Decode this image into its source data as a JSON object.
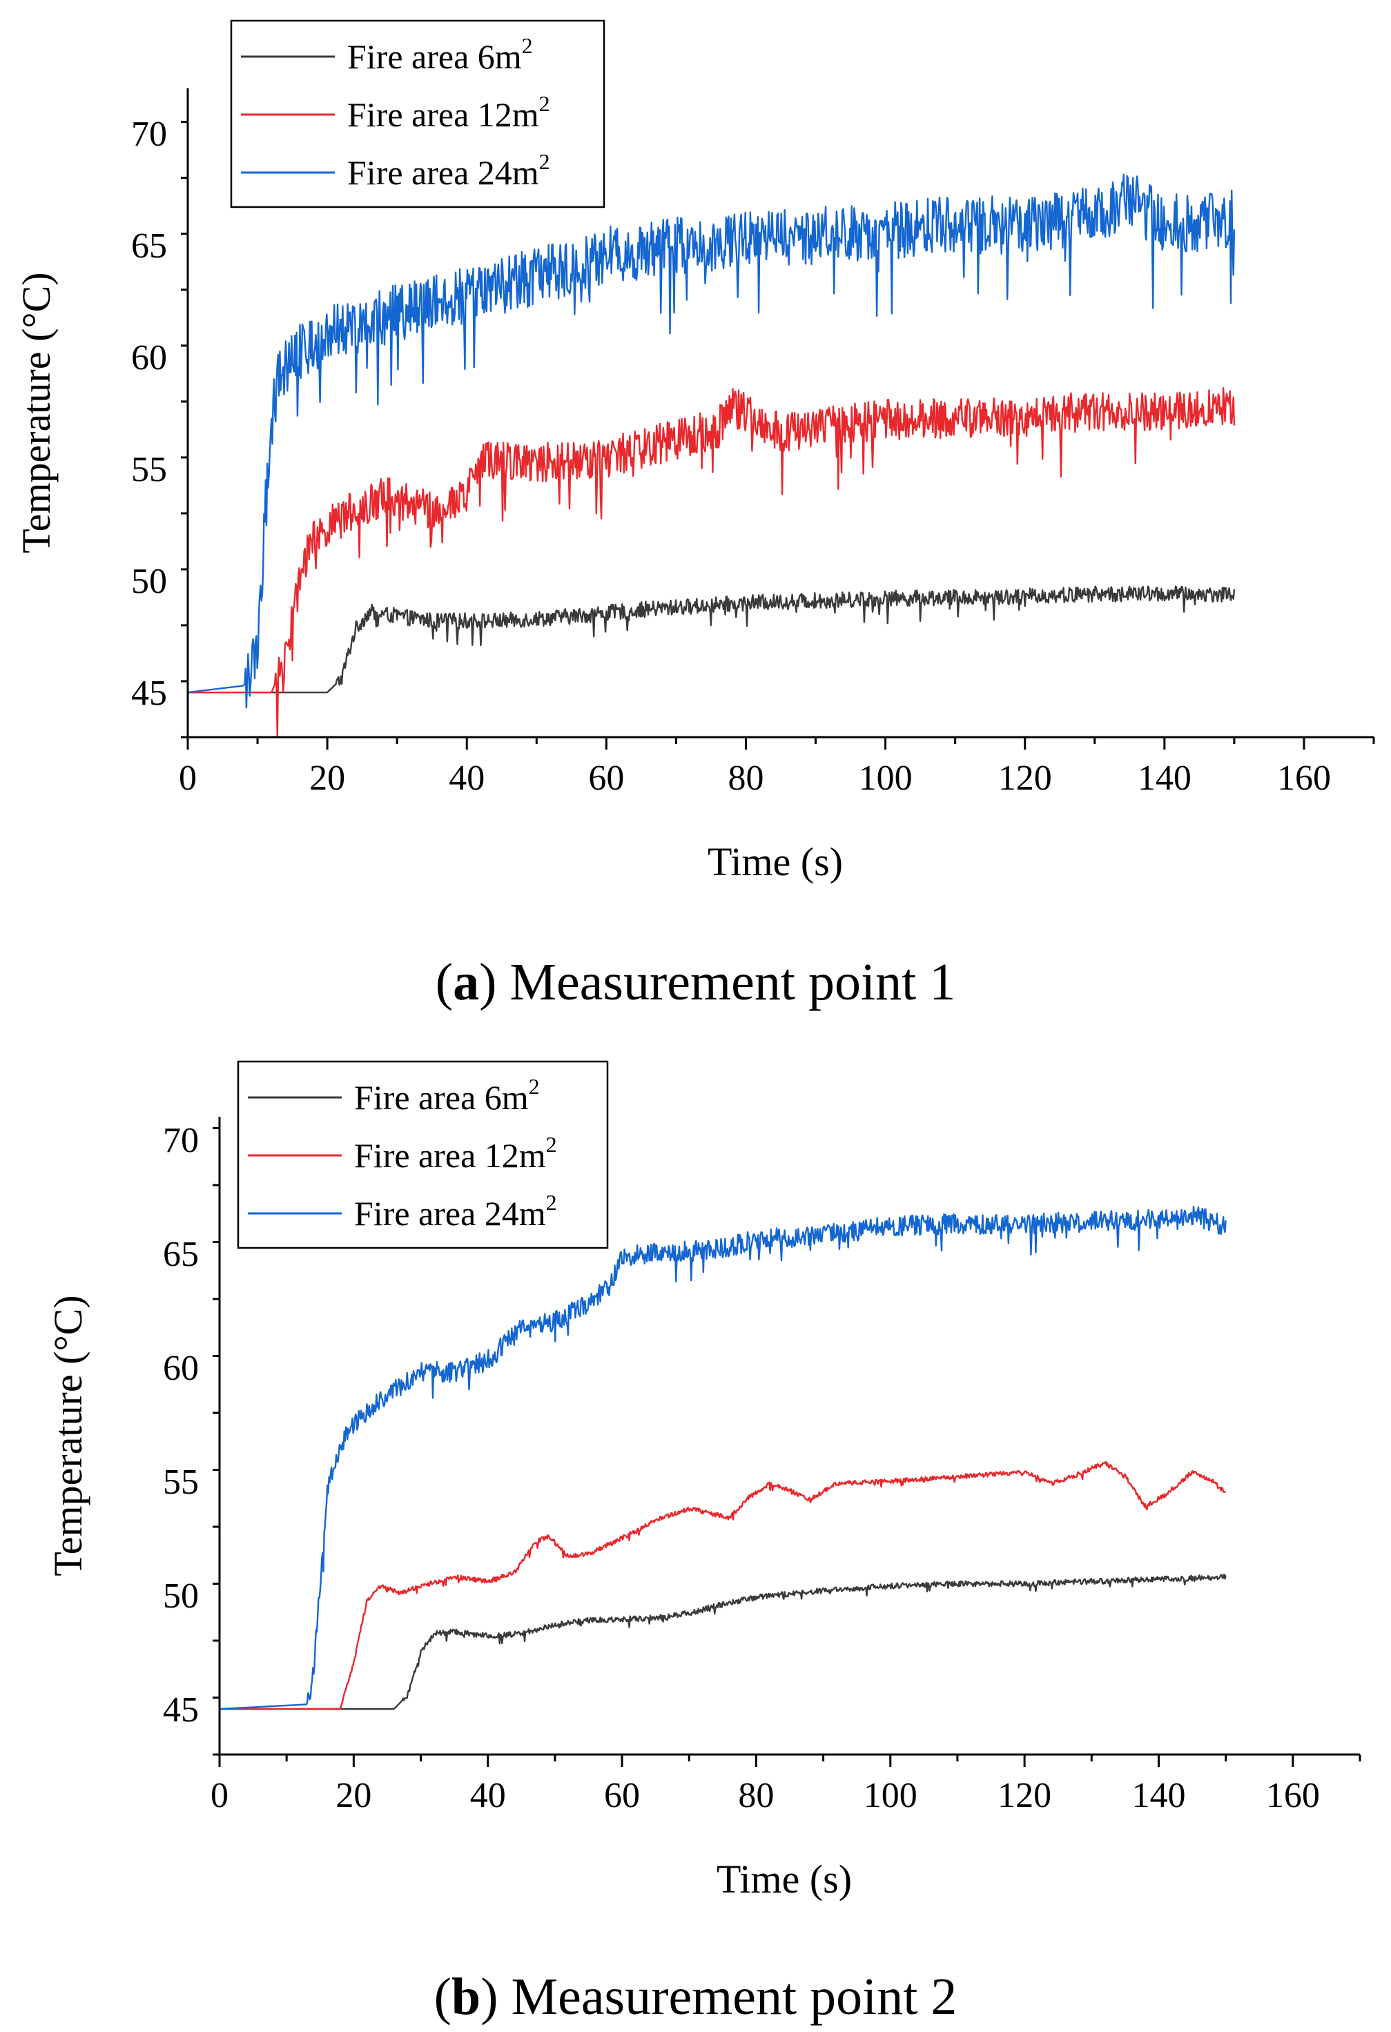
{
  "chart_data": [
    {
      "type": "line",
      "caption_letter": "a",
      "caption_text": "Measurement point 1",
      "xlabel": "Time (s)",
      "ylabel": "Temperature (°C)",
      "xlim": [
        0,
        170
      ],
      "ylim": [
        43,
        72
      ],
      "xticks": [
        0,
        20,
        40,
        60,
        80,
        100,
        120,
        140,
        160
      ],
      "yticks": [
        45,
        50,
        55,
        60,
        65,
        70
      ],
      "legend_position": "top-left",
      "series": [
        {
          "name": "Fire area 6m",
          "superscript": "2",
          "color": "#3a3a3a",
          "noise": 0.35,
          "x": [
            0,
            20,
            22,
            24,
            26,
            28,
            35,
            45,
            55,
            65,
            80,
            100,
            120,
            130,
            140,
            150
          ],
          "values": [
            45,
            45,
            45.6,
            47.8,
            48.6,
            48.5,
            48.2,
            48.2,
            48.4,
            48.7,
            49.0,
            49.2,
            49.3,
            49.4,
            49.4,
            49.4
          ]
        },
        {
          "name": "Fire area 12m",
          "superscript": "2",
          "color": "#e8282c",
          "noise": 0.9,
          "x": [
            0,
            12,
            14,
            16,
            18,
            22,
            28,
            35,
            40,
            42,
            50,
            60,
            70,
            76,
            78,
            85,
            100,
            120,
            130,
            140,
            150
          ],
          "values": [
            45,
            45,
            46.5,
            50.0,
            52.0,
            52.8,
            53.8,
            53.2,
            53.8,
            55.5,
            55.3,
            55.5,
            56.3,
            56.8,
            57.8,
            56.6,
            57.2,
            57.3,
            57.6,
            57.5,
            57.8
          ]
        },
        {
          "name": "Fire area 24m",
          "superscript": "2",
          "color": "#1466d0",
          "noise": 1.3,
          "x": [
            0,
            8,
            10,
            11,
            12,
            13,
            15,
            20,
            30,
            40,
            50,
            60,
            70,
            80,
            90,
            100,
            110,
            120,
            130,
            135,
            140,
            145,
            150
          ],
          "values": [
            45,
            45.3,
            46.5,
            52.5,
            57.0,
            59.0,
            60.0,
            61.0,
            62.0,
            62.8,
            63.6,
            64.5,
            65.0,
            65.2,
            65.4,
            65.6,
            65.9,
            65.9,
            66.3,
            67.0,
            66.0,
            66.0,
            66.2
          ]
        }
      ]
    },
    {
      "type": "line",
      "caption_letter": "b",
      "caption_text": "Measurement point 2",
      "xlabel": "Time (s)",
      "ylabel": "Temperature (°C)",
      "xlim": [
        0,
        170
      ],
      "ylim": [
        43,
        71
      ],
      "xticks": [
        0,
        20,
        40,
        60,
        80,
        100,
        120,
        140,
        160
      ],
      "yticks": [
        45,
        50,
        55,
        60,
        65,
        70
      ],
      "legend_position": "top-left",
      "series": [
        {
          "name": "Fire area 6m",
          "superscript": "2",
          "color": "#3a3a3a",
          "noise": 0.12,
          "x": [
            0,
            26,
            28,
            30,
            32,
            35,
            40,
            45,
            50,
            55,
            65,
            70,
            75,
            80,
            90,
            100,
            110,
            120,
            130,
            140,
            150
          ],
          "values": [
            45,
            45,
            45.6,
            47.5,
            48.3,
            48.4,
            48.2,
            48.3,
            48.7,
            48.9,
            49.0,
            49.2,
            49.6,
            49.9,
            50.2,
            50.4,
            50.5,
            50.5,
            50.6,
            50.7,
            50.8
          ]
        },
        {
          "name": "Fire area 12m",
          "superscript": "2",
          "color": "#e8282c",
          "noise": 0.1,
          "x": [
            0,
            18,
            20,
            22,
            24,
            27,
            30,
            35,
            40,
            44,
            47,
            49,
            52,
            55,
            60,
            65,
            70,
            73,
            76,
            79,
            82,
            85,
            88,
            92,
            100,
            110,
            120,
            124,
            128,
            132,
            135,
            138,
            141,
            145,
            148,
            150
          ],
          "values": [
            45,
            45,
            47.0,
            49.8,
            50.4,
            50.1,
            50.4,
            50.8,
            50.6,
            51.0,
            52.3,
            52.6,
            51.7,
            51.8,
            52.5,
            53.3,
            53.8,
            53.6,
            53.4,
            54.3,
            54.9,
            54.6,
            54.2,
            54.9,
            55.0,
            55.2,
            55.4,
            54.9,
            55.3,
            55.8,
            55.2,
            53.9,
            54.4,
            55.4,
            55.0,
            54.5
          ]
        },
        {
          "name": "Fire area 24m",
          "superscript": "2",
          "color": "#1466d0",
          "noise": 0.45,
          "x": [
            0,
            13,
            14,
            15,
            16,
            18,
            20,
            25,
            30,
            35,
            40,
            45,
            50,
            55,
            58,
            60,
            65,
            70,
            75,
            80,
            85,
            90,
            100,
            110,
            120,
            130,
            140,
            145,
            150
          ],
          "values": [
            45,
            45.2,
            46.5,
            50.5,
            54.5,
            56.5,
            57.5,
            58.8,
            59.8,
            59.8,
            60.3,
            61.7,
            62.0,
            62.8,
            63.5,
            64.8,
            65.1,
            65.1,
            65.2,
            65.6,
            65.7,
            65.8,
            66.2,
            66.3,
            66.3,
            66.4,
            66.5,
            66.7,
            66.2
          ]
        }
      ]
    }
  ]
}
